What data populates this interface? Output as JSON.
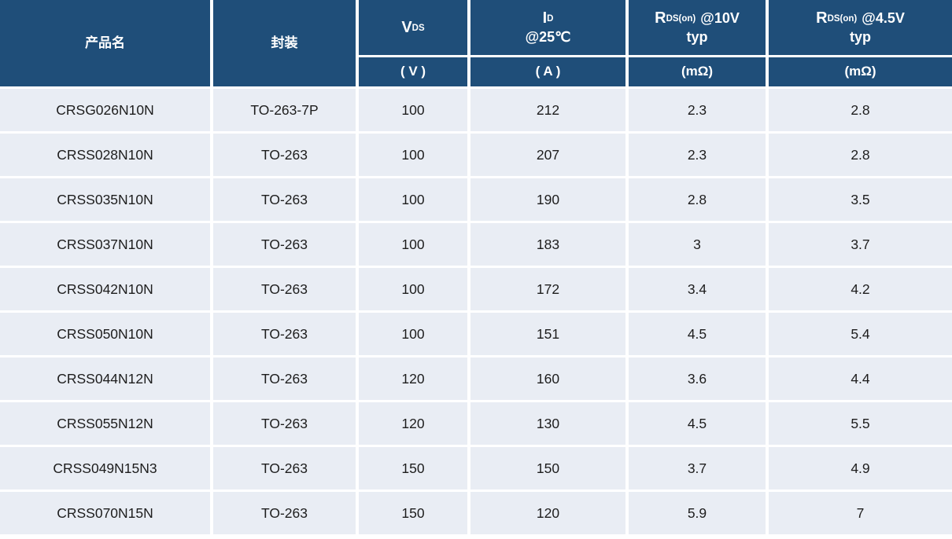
{
  "chart_data": {
    "type": "table",
    "columns": {
      "product": {
        "label": "产品名"
      },
      "package": {
        "label": "封装"
      },
      "vds": {
        "symbol": "V",
        "sub": "DS",
        "unit": "( V )"
      },
      "id": {
        "symbol": "I",
        "sub": "D",
        "condition": "@25℃",
        "unit": "( A )"
      },
      "rds10": {
        "symbol": "R",
        "sub": "DS(on)",
        "condition": "@10V",
        "qualifier": "typ",
        "unit": "(mΩ)"
      },
      "rds45": {
        "symbol": "R",
        "sub": "DS(on)",
        "condition": "@4.5V",
        "qualifier": "typ",
        "unit": "(mΩ)"
      }
    },
    "rows": [
      [
        "CRSG026N10N",
        "TO-263-7P",
        "100",
        "212",
        "2.3",
        "2.8"
      ],
      [
        "CRSS028N10N",
        "TO-263",
        "100",
        "207",
        "2.3",
        "2.8"
      ],
      [
        "CRSS035N10N",
        "TO-263",
        "100",
        "190",
        "2.8",
        "3.5"
      ],
      [
        "CRSS037N10N",
        "TO-263",
        "100",
        "183",
        "3",
        "3.7"
      ],
      [
        "CRSS042N10N",
        "TO-263",
        "100",
        "172",
        "3.4",
        "4.2"
      ],
      [
        "CRSS050N10N",
        "TO-263",
        "100",
        "151",
        "4.5",
        "5.4"
      ],
      [
        "CRSS044N12N",
        "TO-263",
        "120",
        "160",
        "3.6",
        "4.4"
      ],
      [
        "CRSS055N12N",
        "TO-263",
        "120",
        "130",
        "4.5",
        "5.5"
      ],
      [
        "CRSS049N15N3",
        "TO-263",
        "150",
        "150",
        "3.7",
        "4.9"
      ],
      [
        "CRSS070N15N",
        "TO-263",
        "150",
        "120",
        "5.9",
        "7"
      ]
    ]
  },
  "colors": {
    "header_bg": "#1f4e79",
    "header_text": "#ffffff",
    "row_bg": "#e9edf4",
    "grid_gap": "#ffffff",
    "body_text": "#1d1d1d"
  }
}
